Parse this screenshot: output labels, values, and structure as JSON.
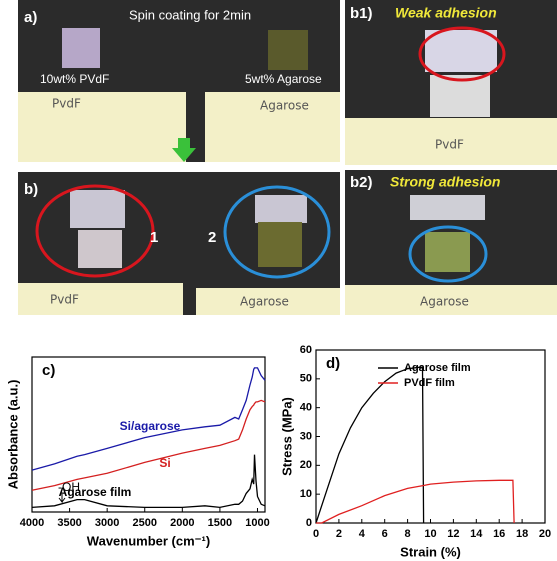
{
  "panels": {
    "a": {
      "label": "a)",
      "title": "Spin coating for 2min",
      "sample1": "10wt% PVdF",
      "sample2": "5wt% Agarose",
      "tag1": "PvdF",
      "tag2": "Agarose"
    },
    "b": {
      "label": "b)",
      "marker1": "1",
      "marker2": "2",
      "tag1": "PvdF",
      "tag2": "Agarose"
    },
    "b1": {
      "label": "b1)",
      "caption": "Weak adhesion",
      "tag": "PvdF"
    },
    "b2": {
      "label": "b2)",
      "caption": "Strong adhesion",
      "tag": "Agarose"
    }
  },
  "chart_data": [
    {
      "type": "line",
      "panel_label": "c)",
      "x_label": "Wavenumber (cm⁻¹)",
      "y_label": "Absorbance (a.u.)",
      "xlim": [
        4000,
        900
      ],
      "xticks": [
        4000,
        3500,
        3000,
        2500,
        2000,
        1500,
        1000
      ],
      "ylim": [
        0,
        10
      ],
      "x": [
        4000,
        3700,
        3400,
        3300,
        3000,
        2500,
        2000,
        1700,
        1500,
        1300,
        1250,
        1200,
        1150,
        1100,
        1070,
        1050,
        1040,
        1020,
        1000,
        950,
        900
      ],
      "series": [
        {
          "name": "Si/agarose",
          "color": "#1a1aa8",
          "values": [
            2.7,
            3.1,
            3.6,
            3.7,
            4.1,
            4.8,
            5.3,
            5.5,
            5.6,
            6.1,
            6.0,
            6.6,
            7.2,
            8.2,
            8.7,
            9.2,
            9.3,
            9.3,
            9.3,
            8.8,
            8.5
          ]
        },
        {
          "name": "Si",
          "color": "#d42020",
          "values": [
            1.4,
            1.7,
            2.1,
            2.2,
            2.5,
            3.2,
            3.8,
            4.1,
            4.3,
            4.6,
            4.7,
            5.3,
            6.0,
            6.6,
            6.8,
            6.9,
            7.0,
            7.1,
            7.1,
            7.2,
            7.1
          ]
        },
        {
          "name": "Agarose film",
          "color": "#000000",
          "values": [
            0.3,
            0.4,
            0.8,
            0.8,
            0.4,
            0.3,
            0.3,
            0.4,
            0.3,
            0.5,
            0.5,
            0.7,
            1.2,
            1.5,
            2.1,
            1.8,
            3.7,
            2.0,
            1.0,
            0.5,
            0.4
          ]
        }
      ],
      "annotation": "-OH"
    },
    {
      "type": "line",
      "panel_label": "d)",
      "x_label": "Strain (%)",
      "y_label": "Stress (MPa)",
      "xlim": [
        0,
        20
      ],
      "xticks": [
        0,
        2,
        4,
        6,
        8,
        10,
        12,
        14,
        16,
        18,
        20
      ],
      "ylim": [
        0,
        60
      ],
      "yticks": [
        0,
        10,
        20,
        30,
        40,
        50,
        60
      ],
      "legend": "top-right",
      "series": [
        {
          "name": "Agarose film",
          "color": "#000000",
          "x": [
            0,
            1,
            2,
            3,
            4,
            5,
            6,
            7,
            8,
            9,
            9.3,
            9.4
          ],
          "values": [
            0,
            12,
            24,
            33,
            40,
            45,
            49,
            52,
            53.5,
            54,
            54,
            0
          ]
        },
        {
          "name": "PVdF film",
          "color": "#e02020",
          "x": [
            0,
            0.5,
            2,
            4,
            6,
            8,
            9.4,
            10,
            12,
            14,
            16,
            17.2,
            17.3
          ],
          "values": [
            0,
            0,
            3,
            6,
            9.5,
            12,
            13,
            13.5,
            14.2,
            14.6,
            14.8,
            14.8,
            0
          ]
        }
      ]
    }
  ]
}
